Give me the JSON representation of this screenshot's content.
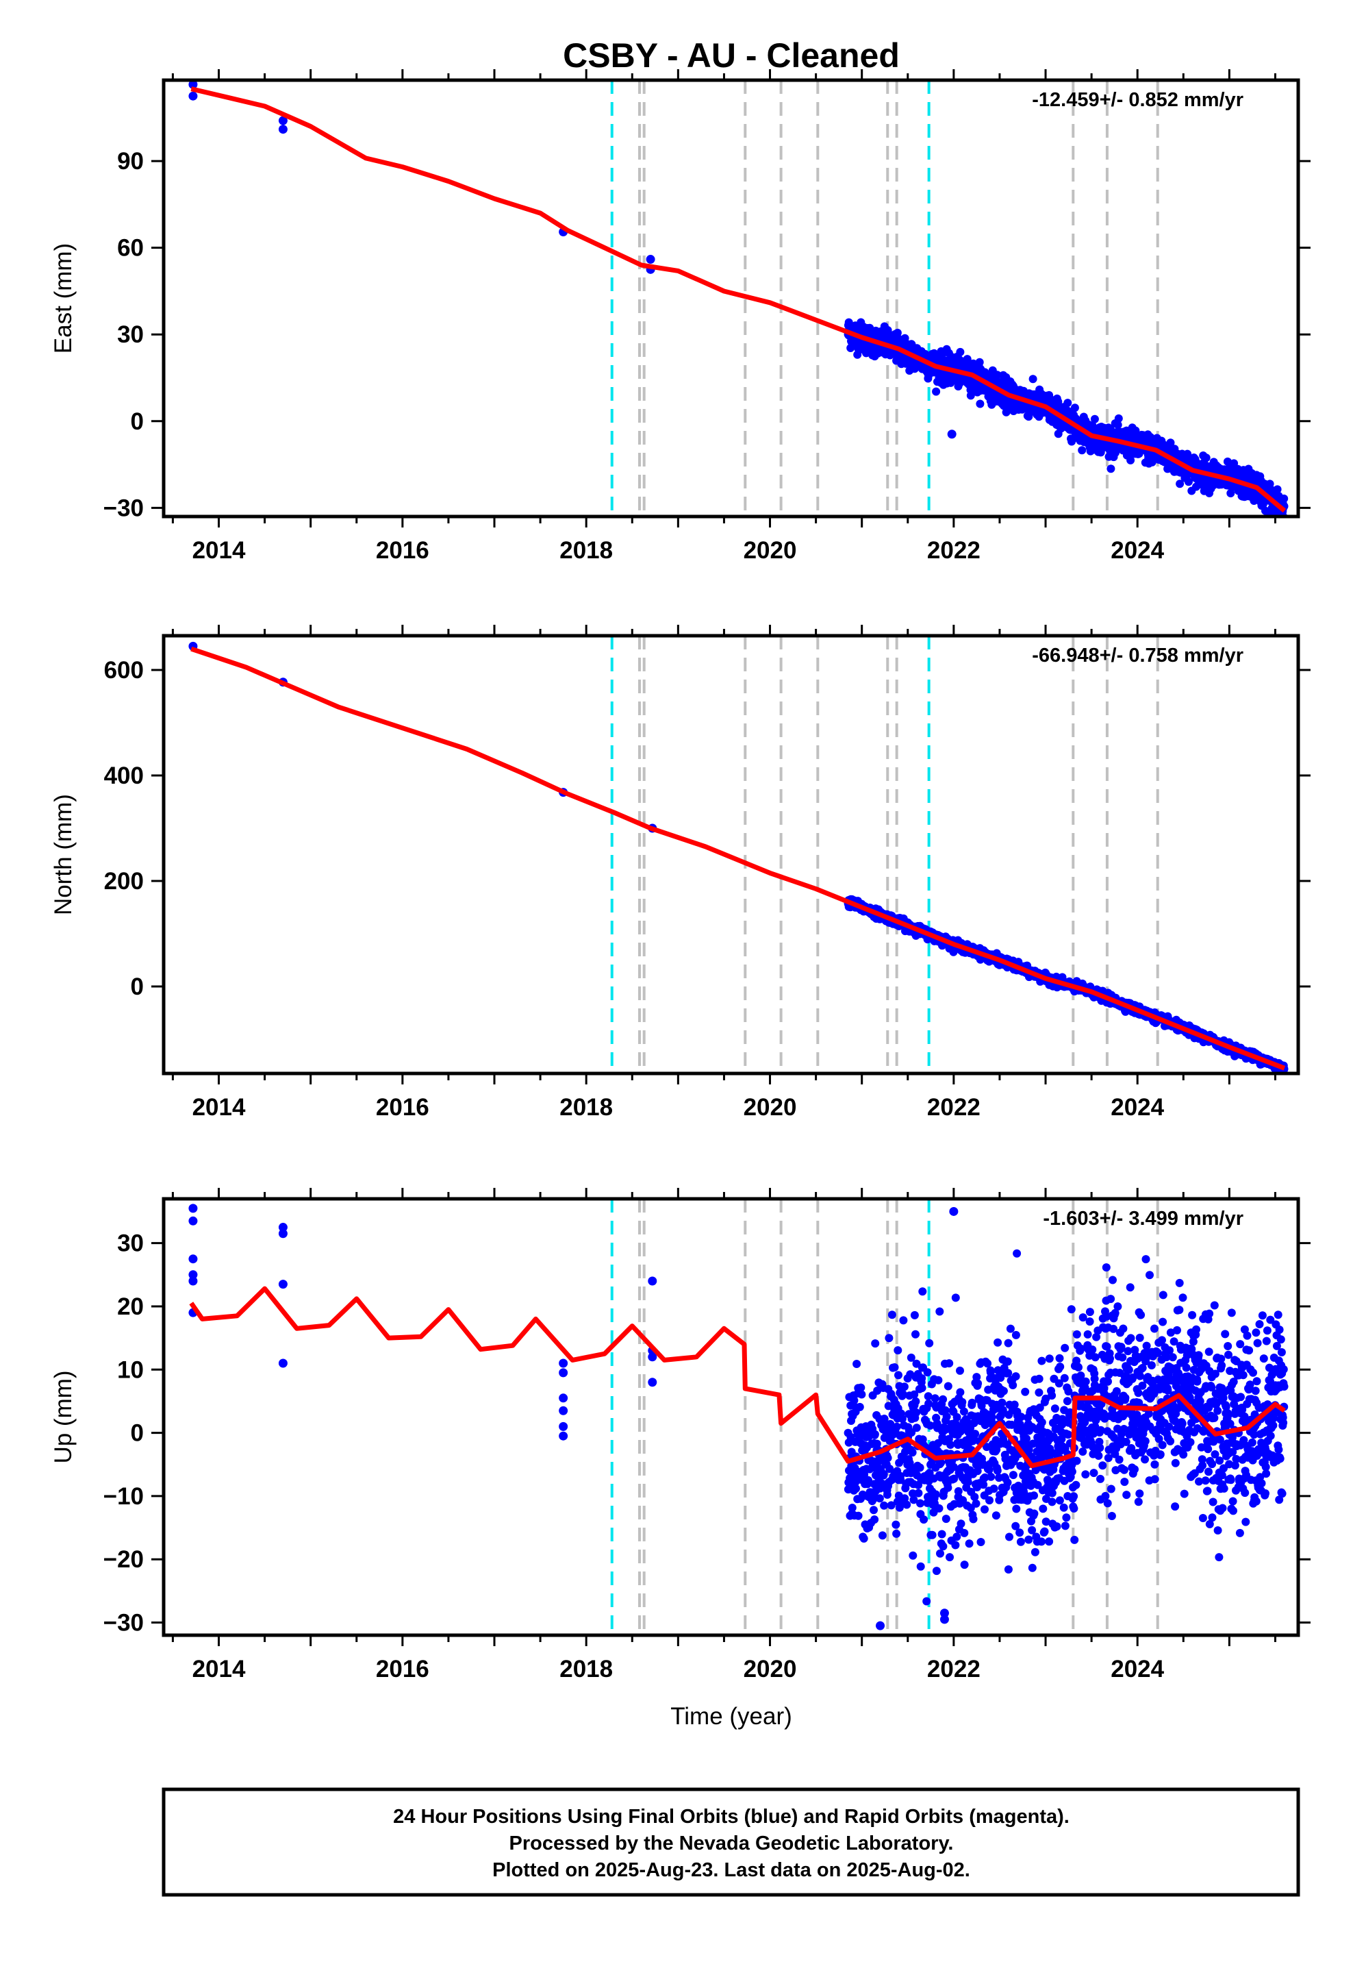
{
  "title": "CSBY  - AU - Cleaned",
  "xlabel": "Time (year)",
  "footer": [
    "24 Hour Positions Using Final Orbits (blue) and Rapid Orbits (magenta).",
    "Processed by the Nevada Geodetic Laboratory.",
    "Plotted on 2025-Aug-23. Last data on 2025-Aug-02."
  ],
  "colors": {
    "points": "#0000ff",
    "model": "#ff0000",
    "equipment_change": "#c0c0c0",
    "earthquake": "#00e5ee"
  },
  "chart_data": [
    {
      "type": "scatter",
      "ylabel": "East (mm)",
      "rate_label": "-12.459+/- 0.852 mm/yr",
      "xlim": [
        2013.4,
        2025.75
      ],
      "ylim": [
        -33,
        118
      ],
      "xticks": [
        2014,
        2016,
        2018,
        2020,
        2022,
        2024
      ],
      "yticks": [
        -30,
        0,
        30,
        60,
        90
      ],
      "grid": false,
      "model": {
        "values_at": [
          [
            2013.7,
            115
          ],
          [
            2014.1,
            112
          ],
          [
            2014.5,
            109
          ],
          [
            2015.0,
            102
          ],
          [
            2015.6,
            91
          ],
          [
            2016.0,
            88
          ],
          [
            2016.5,
            83
          ],
          [
            2017.0,
            77
          ],
          [
            2017.5,
            72
          ],
          [
            2017.8,
            66
          ],
          [
            2018.2,
            60
          ],
          [
            2018.6,
            54
          ],
          [
            2019.0,
            52
          ],
          [
            2019.5,
            45
          ],
          [
            2020.0,
            41
          ],
          [
            2020.5,
            35
          ],
          [
            2021.0,
            29
          ],
          [
            2021.4,
            25
          ],
          [
            2021.8,
            19
          ],
          [
            2022.2,
            16
          ],
          [
            2022.6,
            9
          ],
          [
            2023.0,
            5
          ],
          [
            2023.5,
            -5
          ],
          [
            2023.8,
            -7
          ],
          [
            2024.2,
            -10
          ],
          [
            2024.6,
            -17
          ],
          [
            2025.0,
            -20
          ],
          [
            2025.3,
            -23
          ],
          [
            2025.6,
            -31
          ]
        ]
      },
      "points_daily": {
        "start": 2020.85,
        "end": 2025.6,
        "scatter_mm": 2.5
      },
      "points_isolated": [
        [
          2013.72,
          116.5
        ],
        [
          2013.72,
          112.5
        ],
        [
          2014.7,
          104
        ],
        [
          2014.7,
          101
        ],
        [
          2017.75,
          65.5
        ],
        [
          2018.7,
          56
        ],
        [
          2018.7,
          52.5
        ],
        [
          2021.98,
          -4.5
        ]
      ],
      "equipment_changes": [
        2018.58,
        2018.63,
        2019.73,
        2020.12,
        2020.52,
        2021.28,
        2021.38,
        2023.3,
        2023.67,
        2024.22
      ],
      "earthquakes": [
        2018.28,
        2021.73
      ]
    },
    {
      "type": "scatter",
      "ylabel": "North (mm)",
      "rate_label": "-66.948+/- 0.758 mm/yr",
      "xlim": [
        2013.4,
        2025.75
      ],
      "ylim": [
        -165,
        665
      ],
      "xticks": [
        2014,
        2016,
        2018,
        2020,
        2022,
        2024
      ],
      "yticks": [
        0,
        200,
        400,
        600
      ],
      "grid": false,
      "model": {
        "values_at": [
          [
            2013.7,
            640
          ],
          [
            2014.3,
            605
          ],
          [
            2014.7,
            575
          ],
          [
            2015.3,
            530
          ],
          [
            2016.0,
            490
          ],
          [
            2016.7,
            450
          ],
          [
            2017.3,
            405
          ],
          [
            2017.8,
            365
          ],
          [
            2018.3,
            330
          ],
          [
            2018.7,
            300
          ],
          [
            2019.3,
            265
          ],
          [
            2020.0,
            215
          ],
          [
            2020.5,
            185
          ],
          [
            2021.0,
            150
          ],
          [
            2021.5,
            115
          ],
          [
            2022.0,
            80
          ],
          [
            2022.5,
            50
          ],
          [
            2023.0,
            15
          ],
          [
            2023.5,
            -10
          ],
          [
            2024.0,
            -45
          ],
          [
            2024.5,
            -80
          ],
          [
            2025.0,
            -115
          ],
          [
            2025.6,
            -155
          ]
        ]
      },
      "points_daily": {
        "start": 2020.85,
        "end": 2025.6,
        "scatter_mm": 4
      },
      "points_isolated": [
        [
          2013.72,
          645
        ],
        [
          2014.7,
          577
        ],
        [
          2017.75,
          368
        ],
        [
          2018.72,
          300
        ]
      ],
      "equipment_changes": [
        2018.58,
        2018.63,
        2019.73,
        2020.12,
        2020.52,
        2021.28,
        2021.38,
        2023.3,
        2023.67,
        2024.22
      ],
      "earthquakes": [
        2018.28,
        2021.73
      ]
    },
    {
      "type": "scatter",
      "ylabel": "Up (mm)",
      "rate_label": "-1.603+/- 3.499 mm/yr",
      "xlim": [
        2013.4,
        2025.75
      ],
      "ylim": [
        -32,
        37
      ],
      "xticks": [
        2014,
        2016,
        2018,
        2020,
        2022,
        2024
      ],
      "yticks": [
        -30,
        -20,
        -10,
        0,
        10,
        20,
        30
      ],
      "grid": false,
      "model": {
        "values_at": [
          [
            2013.7,
            20.5
          ],
          [
            2013.82,
            18
          ],
          [
            2014.2,
            18.5
          ],
          [
            2014.5,
            22.8
          ],
          [
            2014.85,
            16.5
          ],
          [
            2015.2,
            17
          ],
          [
            2015.5,
            21.2
          ],
          [
            2015.85,
            15
          ],
          [
            2016.2,
            15.2
          ],
          [
            2016.5,
            19.5
          ],
          [
            2016.85,
            13.2
          ],
          [
            2017.2,
            13.8
          ],
          [
            2017.45,
            18
          ],
          [
            2017.85,
            11.5
          ],
          [
            2018.2,
            12.5
          ],
          [
            2018.5,
            16.9
          ],
          [
            2018.85,
            11.5
          ],
          [
            2019.2,
            12
          ],
          [
            2019.5,
            16.5
          ],
          [
            2019.72,
            14
          ],
          [
            2019.73,
            7
          ],
          [
            2020.1,
            6
          ],
          [
            2020.12,
            1.5
          ],
          [
            2020.5,
            6
          ],
          [
            2020.52,
            3
          ],
          [
            2020.85,
            -4.5
          ],
          [
            2021.2,
            -3
          ],
          [
            2021.5,
            -1
          ],
          [
            2021.8,
            -4
          ],
          [
            2022.2,
            -3.5
          ],
          [
            2022.5,
            1.5
          ],
          [
            2022.85,
            -5.2
          ],
          [
            2023.2,
            -4
          ],
          [
            2023.3,
            -3.5
          ],
          [
            2023.32,
            5.5
          ],
          [
            2023.6,
            5.5
          ],
          [
            2023.8,
            4
          ],
          [
            2024.2,
            3.8
          ],
          [
            2024.45,
            5.9
          ],
          [
            2024.85,
            -0.2
          ],
          [
            2025.2,
            0.8
          ],
          [
            2025.5,
            4.5
          ],
          [
            2025.6,
            3.5
          ]
        ]
      },
      "points_daily": {
        "start": 2020.85,
        "end": 2025.6,
        "scatter_mm": 7
      },
      "points_isolated": [
        [
          2013.72,
          35.5
        ],
        [
          2013.72,
          33.5
        ],
        [
          2013.72,
          27.5
        ],
        [
          2013.72,
          25
        ],
        [
          2013.72,
          24
        ],
        [
          2013.72,
          19
        ],
        [
          2014.7,
          32.5
        ],
        [
          2014.7,
          31.5
        ],
        [
          2014.7,
          23.5
        ],
        [
          2014.7,
          11
        ],
        [
          2017.75,
          11
        ],
        [
          2017.75,
          9.5
        ],
        [
          2017.75,
          5.5
        ],
        [
          2017.75,
          3.5
        ],
        [
          2017.75,
          1
        ],
        [
          2017.75,
          -0.5
        ],
        [
          2018.72,
          24
        ],
        [
          2018.72,
          13
        ],
        [
          2018.72,
          12
        ],
        [
          2018.72,
          8
        ],
        [
          2022.0,
          35
        ],
        [
          2021.9,
          -28.5
        ],
        [
          2021.9,
          -29.5
        ],
        [
          2021.2,
          -30.5
        ]
      ],
      "equipment_changes": [
        2018.58,
        2018.63,
        2019.73,
        2020.12,
        2020.52,
        2021.28,
        2021.38,
        2023.3,
        2023.67,
        2024.22
      ],
      "earthquakes": [
        2018.28,
        2021.73
      ]
    }
  ]
}
